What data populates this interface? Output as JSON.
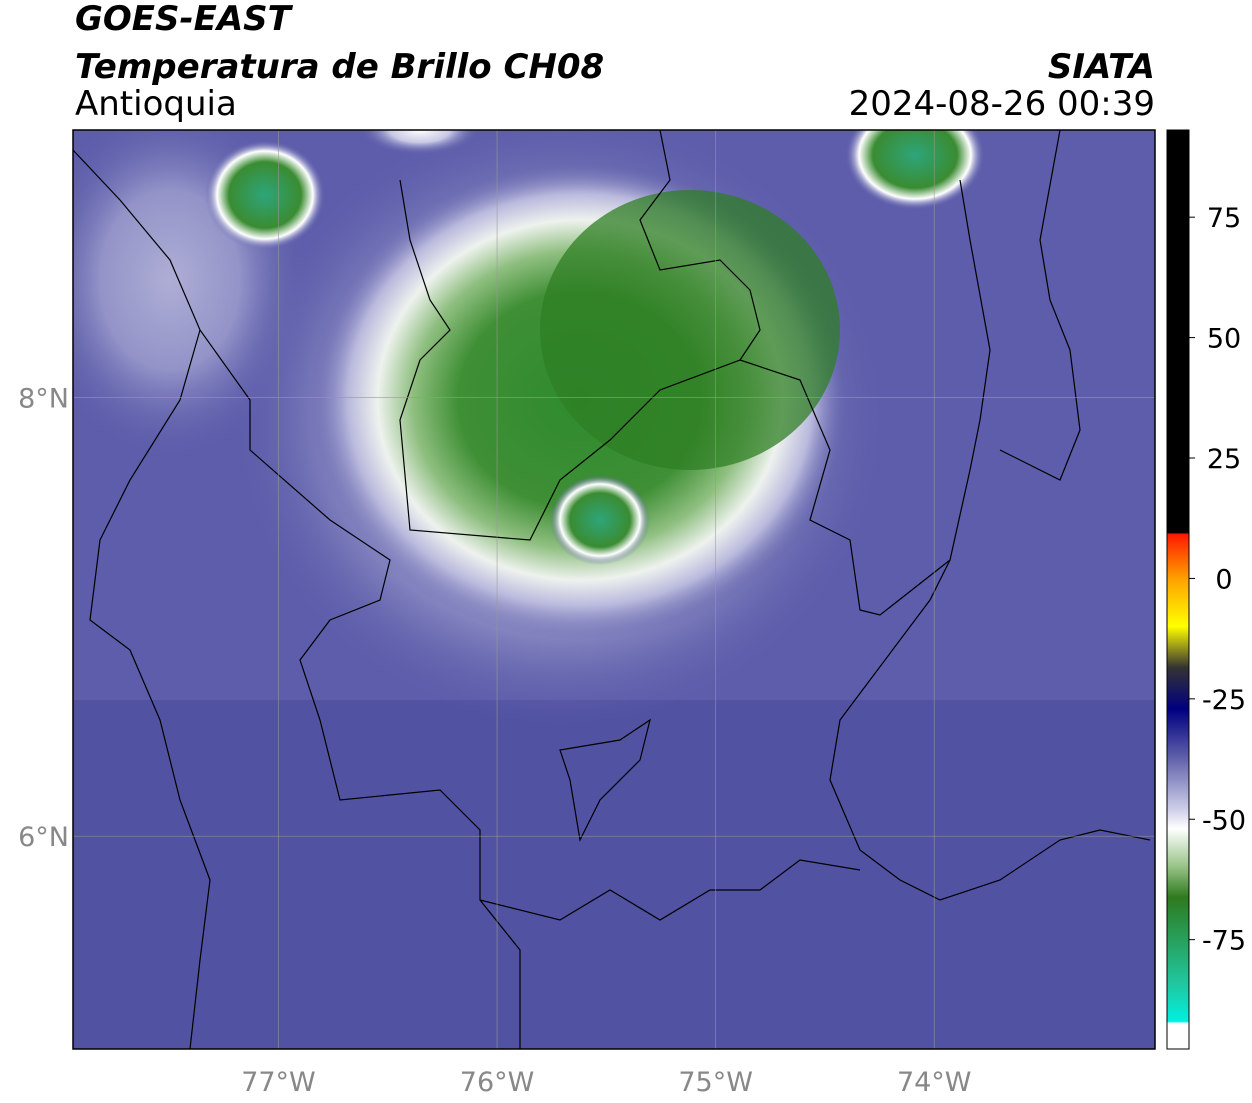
{
  "header": {
    "title": "GOES-EAST",
    "subtitle": "Temperatura de Brillo CH08",
    "region": "Antioquia",
    "source": "SIATA",
    "timestamp": "2024-08-26 00:39"
  },
  "map": {
    "xlim": [
      -77.94,
      -72.99
    ],
    "ylim": [
      5.03,
      9.22
    ],
    "xticks": [
      {
        "value": -77,
        "label": "77°W"
      },
      {
        "value": -76,
        "label": "76°W"
      },
      {
        "value": -75,
        "label": "75°W"
      },
      {
        "value": -74,
        "label": "74°W"
      }
    ],
    "yticks": [
      {
        "value": 6,
        "label": "6°N"
      },
      {
        "value": 8,
        "label": "8°N"
      }
    ]
  },
  "colorbar": {
    "lim": [
      -97.7,
      93.1
    ],
    "ticks": [
      75,
      50,
      25,
      0,
      -25,
      -50,
      -75
    ]
  }
}
